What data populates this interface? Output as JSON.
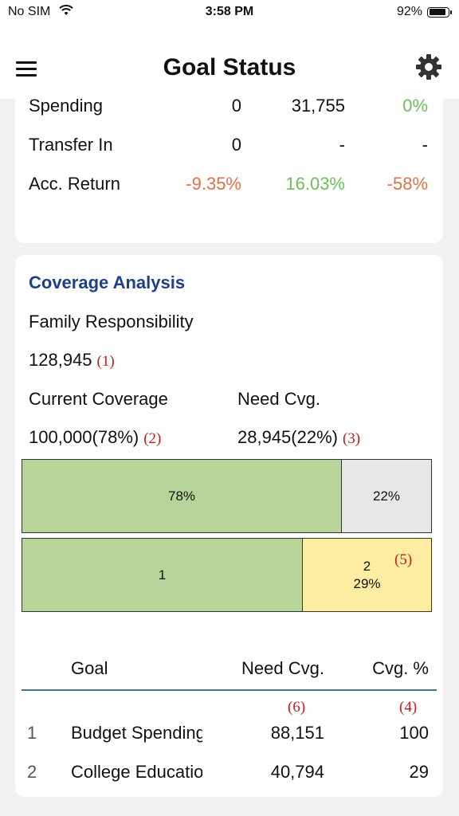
{
  "status_bar": {
    "carrier": "No SIM",
    "time": "3:58 PM",
    "battery": "92%",
    "battery_level": 0.92
  },
  "header": {
    "title": "Goal Status"
  },
  "summary_rows": [
    {
      "label": "Spending",
      "c1": "0",
      "c2": "31,755",
      "c3": "0%"
    },
    {
      "label": "Transfer In",
      "c1": "0",
      "c2": "-",
      "c3": "-"
    },
    {
      "label": "Acc. Return",
      "c1": "-9.35%",
      "c2": "16.03%",
      "c3": "-58%"
    }
  ],
  "coverage": {
    "title": "Coverage Analysis",
    "family_label": "Family Responsibility",
    "family_value": "128,945",
    "note1": "(1)",
    "current_label": "Current Coverage",
    "need_label": "Need Cvg.",
    "current_value": "100,000(78%)",
    "note2": "(2)",
    "need_value": "28,945(22%)",
    "note3": "(3)",
    "bar1": {
      "left_label": "78%",
      "right_label": "22%",
      "left_fraction": 0.78
    },
    "bar2": {
      "left_label": "1",
      "right_label_1": "2",
      "right_label_2": "29%",
      "note5": "(5)",
      "left_fraction": 0.685
    }
  },
  "goal_table": {
    "headers": {
      "goal": "Goal",
      "need": "Need Cvg.",
      "pct": "Cvg. %"
    },
    "note6": "(6)",
    "note4": "(4)",
    "rows": [
      {
        "idx": "1",
        "goal": "Budget Spending",
        "need": "88,151",
        "pct": "100"
      },
      {
        "idx": "2",
        "goal": "College Education",
        "need": "40,794",
        "pct": "29"
      }
    ]
  },
  "colors": {
    "accent_title": "#1f3f8c",
    "negative": "#e07046",
    "positive": "#6cbf58",
    "bar_green": "#b7d59a",
    "bar_gray": "#e7e7e7",
    "bar_yellow": "#fdeda3",
    "note_red": "#c41a1a"
  }
}
